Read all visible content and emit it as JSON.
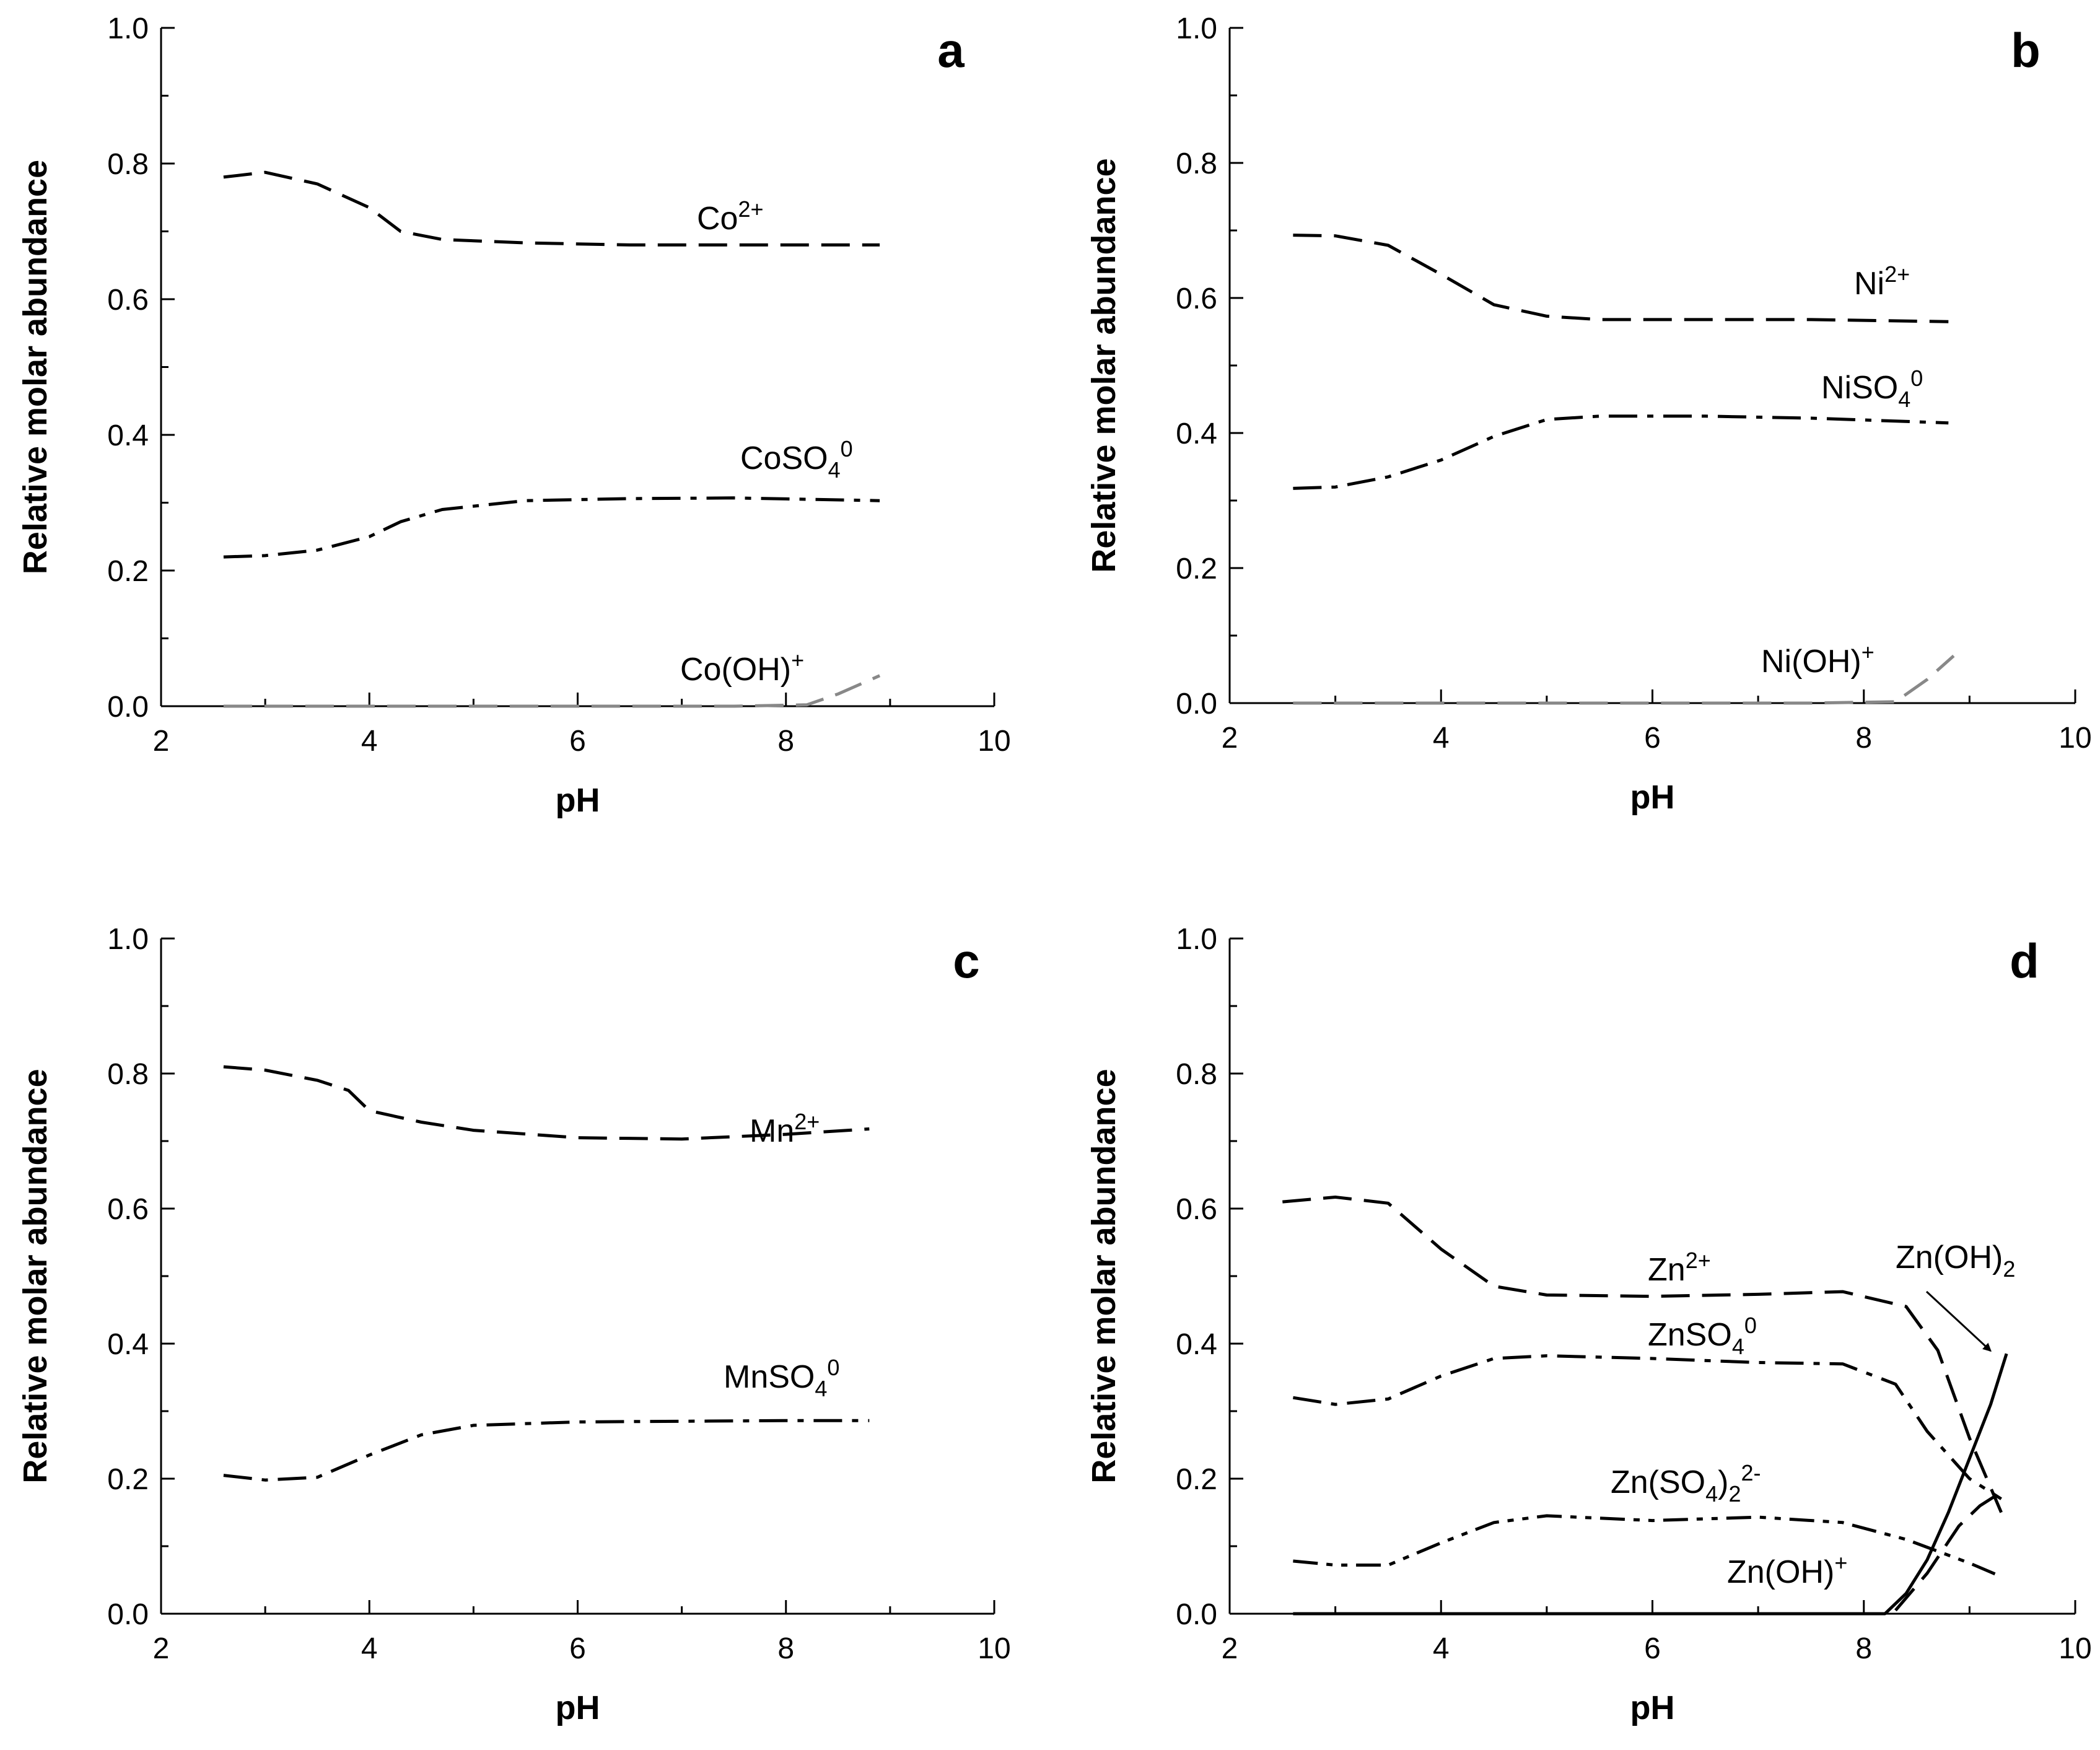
{
  "chart_data": [
    {
      "type": "line",
      "panel": "a",
      "xlabel": "pH",
      "ylabel": "Relative molar abundance",
      "xlim": [
        2,
        10
      ],
      "ylim": [
        0,
        1
      ],
      "xticks": [
        "2",
        "4",
        "6",
        "8",
        "10"
      ],
      "yticks": [
        "0.0",
        "0.2",
        "0.4",
        "0.6",
        "0.8",
        "1.0"
      ],
      "series": [
        {
          "name": "Co2+",
          "label": "Co",
          "sup": "2+",
          "sub": "",
          "style": "dash",
          "color": "#000000",
          "x": [
            2.6,
            3.0,
            3.5,
            4.0,
            4.3,
            4.7,
            5.5,
            6.5,
            7.5,
            8.9
          ],
          "y": [
            0.78,
            0.787,
            0.77,
            0.735,
            0.7,
            0.688,
            0.683,
            0.68,
            0.68,
            0.68
          ]
        },
        {
          "name": "CoSO40",
          "label": "CoSO",
          "sub": "4",
          "sup": "0",
          "style": "dashdot",
          "color": "#000000",
          "x": [
            2.6,
            3.0,
            3.5,
            4.0,
            4.3,
            4.7,
            5.5,
            6.5,
            7.5,
            8.9
          ],
          "y": [
            0.22,
            0.222,
            0.23,
            0.25,
            0.272,
            0.29,
            0.303,
            0.306,
            0.307,
            0.303
          ]
        },
        {
          "name": "Co(OH)+",
          "label": "Co(OH)",
          "sup": "+",
          "sub": "",
          "style": "dash",
          "color": "#888888",
          "x": [
            2.6,
            5.0,
            7.5,
            8.2,
            8.5,
            8.9
          ],
          "y": [
            0.0,
            0.0,
            0.0,
            0.002,
            0.018,
            0.045
          ]
        }
      ]
    },
    {
      "type": "line",
      "panel": "b",
      "xlabel": "pH",
      "ylabel": "Relative molar abundance",
      "xlim": [
        2,
        10
      ],
      "ylim": [
        0,
        1
      ],
      "xticks": [
        "2",
        "4",
        "6",
        "8",
        "10"
      ],
      "yticks": [
        "0.0",
        "0.2",
        "0.4",
        "0.6",
        "0.8",
        "1.0"
      ],
      "series": [
        {
          "name": "Ni2+",
          "label": "Ni",
          "sup": "2+",
          "sub": "",
          "style": "dash",
          "color": "#000000",
          "x": [
            2.6,
            3.0,
            3.5,
            4.0,
            4.5,
            5.0,
            5.5,
            6.5,
            7.5,
            8.8
          ],
          "y": [
            0.693,
            0.692,
            0.678,
            0.635,
            0.59,
            0.573,
            0.568,
            0.568,
            0.568,
            0.565
          ]
        },
        {
          "name": "NiSO40",
          "label": "NiSO",
          "sub": "4",
          "sup": "0",
          "style": "dashdot",
          "color": "#000000",
          "x": [
            2.6,
            3.0,
            3.5,
            4.0,
            4.5,
            5.0,
            5.5,
            6.5,
            7.5,
            8.8
          ],
          "y": [
            0.318,
            0.32,
            0.335,
            0.36,
            0.395,
            0.42,
            0.425,
            0.425,
            0.422,
            0.415
          ]
        },
        {
          "name": "Ni(OH)+",
          "label": "Ni(OH)",
          "sup": "+",
          "sub": "",
          "style": "dash",
          "color": "#888888",
          "x": [
            2.6,
            5.0,
            7.5,
            8.3,
            8.6,
            8.85
          ],
          "y": [
            0.0,
            0.0,
            0.0,
            0.002,
            0.035,
            0.07
          ]
        }
      ]
    },
    {
      "type": "line",
      "panel": "c",
      "xlabel": "pH",
      "ylabel": "Relative molar abundance",
      "xlim": [
        2,
        10
      ],
      "ylim": [
        0,
        1
      ],
      "xticks": [
        "2",
        "4",
        "6",
        "8",
        "10"
      ],
      "yticks": [
        "0.0",
        "0.2",
        "0.4",
        "0.6",
        "0.8",
        "1.0"
      ],
      "series": [
        {
          "name": "Mn2+",
          "label": "Mn",
          "sup": "2+",
          "sub": "",
          "style": "dash",
          "color": "#000000",
          "x": [
            2.6,
            3.0,
            3.5,
            3.8,
            4.0,
            4.5,
            5.0,
            6.0,
            7.0,
            8.0,
            8.8
          ],
          "y": [
            0.81,
            0.805,
            0.79,
            0.775,
            0.745,
            0.728,
            0.716,
            0.705,
            0.703,
            0.71,
            0.718
          ]
        },
        {
          "name": "MnSO40",
          "label": "MnSO",
          "sub": "4",
          "sup": "0",
          "style": "dashdot",
          "color": "#000000",
          "x": [
            2.6,
            3.0,
            3.5,
            4.0,
            4.5,
            5.0,
            6.0,
            7.0,
            8.0,
            8.8
          ],
          "y": [
            0.205,
            0.198,
            0.202,
            0.235,
            0.265,
            0.279,
            0.284,
            0.285,
            0.286,
            0.286
          ]
        }
      ]
    },
    {
      "type": "line",
      "panel": "d",
      "xlabel": "pH",
      "ylabel": "Relative molar abundance",
      "xlim": [
        2,
        10
      ],
      "ylim": [
        0,
        1
      ],
      "xticks": [
        "2",
        "4",
        "6",
        "8",
        "10"
      ],
      "yticks": [
        "0.0",
        "0.2",
        "0.4",
        "0.6",
        "0.8",
        "1.0"
      ],
      "annotation": {
        "label": "Zn(OH)",
        "sub": "2",
        "arrow_to_x": 9.2,
        "arrow_to_y": 0.38
      },
      "series": [
        {
          "name": "Zn2+",
          "label": "Zn",
          "sup": "2+",
          "sub": "",
          "style": "dash",
          "color": "#000000",
          "x": [
            2.5,
            3.0,
            3.5,
            4.0,
            4.5,
            5.0,
            6.0,
            7.0,
            7.8,
            8.4,
            8.7,
            9.0,
            9.3
          ],
          "y": [
            0.61,
            0.617,
            0.608,
            0.54,
            0.485,
            0.472,
            0.47,
            0.473,
            0.477,
            0.455,
            0.39,
            0.26,
            0.15
          ]
        },
        {
          "name": "ZnSO40",
          "label": "ZnSO",
          "sub": "4",
          "sup": "0",
          "style": "dashdot",
          "color": "#000000",
          "x": [
            2.6,
            3.0,
            3.5,
            4.0,
            4.5,
            5.0,
            6.0,
            7.0,
            7.8,
            8.3,
            8.6,
            9.0,
            9.3
          ],
          "y": [
            0.32,
            0.31,
            0.318,
            0.352,
            0.378,
            0.382,
            0.378,
            0.372,
            0.37,
            0.34,
            0.27,
            0.2,
            0.17
          ]
        },
        {
          "name": "Zn(SO4)22-",
          "label": "Zn(SO",
          "sub": "4",
          "mid": ")",
          "sub2": "2",
          "sup": "2-",
          "style": "dashdotdot",
          "color": "#000000",
          "x": [
            2.6,
            3.0,
            3.5,
            4.0,
            4.5,
            5.0,
            6.0,
            7.0,
            7.8,
            8.4,
            9.0,
            9.3
          ],
          "y": [
            0.078,
            0.072,
            0.072,
            0.105,
            0.135,
            0.145,
            0.138,
            0.143,
            0.135,
            0.11,
            0.075,
            0.055
          ]
        },
        {
          "name": "Zn(OH)+",
          "label": "Zn(OH)",
          "sup": "+",
          "sub": "",
          "style": "dash",
          "color": "#000000",
          "x": [
            8.3,
            8.6,
            8.9,
            9.1,
            9.3
          ],
          "y": [
            0.005,
            0.06,
            0.13,
            0.16,
            0.18
          ]
        },
        {
          "name": "Zn(OH)2",
          "label": "",
          "sup": "",
          "sub": "",
          "style": "solid",
          "color": "#000000",
          "x": [
            2.6,
            5.0,
            7.5,
            8.2,
            8.4,
            8.6,
            8.8,
            9.0,
            9.2,
            9.35
          ],
          "y": [
            0.0,
            0.0,
            0.0,
            0.0,
            0.03,
            0.08,
            0.15,
            0.23,
            0.31,
            0.385
          ]
        }
      ]
    }
  ]
}
